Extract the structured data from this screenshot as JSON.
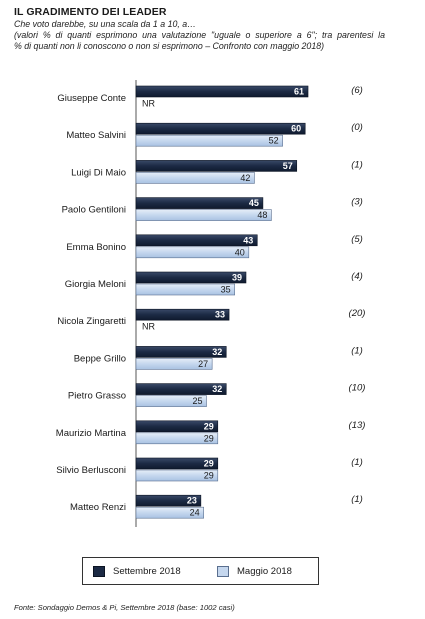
{
  "header": {
    "title": "IL GRADIMENTO DEI LEADER",
    "subtitle_line1": "Che voto darebbe,  su una scala da 1 a 10, a…",
    "subtitle_line2": "(valori  %  di  quanti  esprimono  una  valutazione  \"uguale  o  superiore  a  6\";  tra  parentesi  la",
    "subtitle_line3": "% di quanti non li conoscono o non si esprimono – Confronto con maggio 2018)"
  },
  "chart_data": {
    "type": "bar",
    "orientation": "horizontal",
    "categories": [
      "Giuseppe Conte",
      "Matteo Salvini",
      "Luigi Di Maio",
      "Paolo Gentiloni",
      "Emma Bonino",
      "Giorgia Meloni",
      "Nicola Zingaretti",
      "Beppe Grillo",
      "Pietro Grasso",
      "Maurizio Martina",
      "Silvio Berlusconi",
      "Matteo Renzi"
    ],
    "series": [
      {
        "name": "Settembre 2018",
        "color": "#1c2a44",
        "values": [
          61,
          60,
          57,
          45,
          43,
          39,
          33,
          32,
          32,
          29,
          29,
          23
        ]
      },
      {
        "name": "Maggio 2018",
        "color": "#c5d7ee",
        "values": [
          null,
          52,
          42,
          48,
          40,
          35,
          null,
          27,
          25,
          29,
          29,
          24
        ]
      }
    ],
    "missing_label": "NR",
    "unknown_pct": [
      "(6)",
      "(0)",
      "(1)",
      "(3)",
      "(5)",
      "(4)",
      "(20)",
      "(1)",
      "(10)",
      "(13)",
      "(1)",
      "(1)"
    ],
    "legend_position": "bottom",
    "xlim": [
      0,
      100
    ]
  },
  "legend": {
    "sept_label": "Settembre 2018",
    "may_label": "Maggio 2018"
  },
  "footer": {
    "source": "Fonte: Sondaggio Demos & Pi, Settembre 2018 (base: 1002 casi)"
  }
}
